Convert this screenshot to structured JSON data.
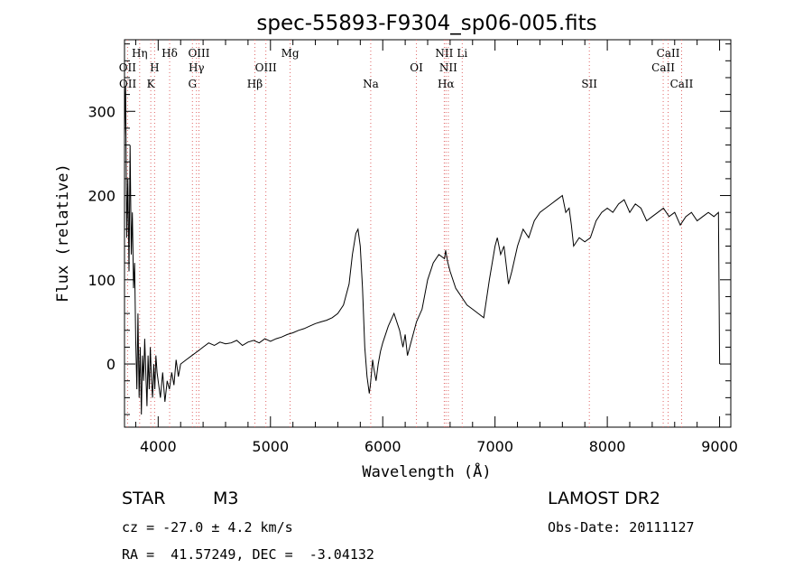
{
  "chart_data": {
    "type": "line",
    "title": "spec-55893-F9304_sp06-005.fits",
    "xlabel": "Wavelength (Å)",
    "ylabel": "Flux (relative)",
    "xlim": [
      3700,
      9100
    ],
    "ylim": [
      -75,
      385
    ],
    "xticks": [
      4000,
      5000,
      6000,
      7000,
      8000,
      9000
    ],
    "yticks": [
      0,
      100,
      200,
      300
    ],
    "grid": false,
    "series": [
      {
        "color": "#000000",
        "x": [
          3700,
          3710,
          3720,
          3730,
          3740,
          3750,
          3760,
          3770,
          3780,
          3790,
          3800,
          3810,
          3820,
          3830,
          3840,
          3850,
          3860,
          3870,
          3880,
          3890,
          3900,
          3910,
          3920,
          3930,
          3940,
          3950,
          3960,
          3970,
          3980,
          3990,
          4000,
          4020,
          4040,
          4060,
          4080,
          4100,
          4120,
          4140,
          4160,
          4180,
          4200,
          4250,
          4300,
          4350,
          4400,
          4450,
          4500,
          4550,
          4600,
          4650,
          4700,
          4750,
          4800,
          4850,
          4900,
          4950,
          5000,
          5050,
          5100,
          5150,
          5200,
          5250,
          5300,
          5350,
          5400,
          5450,
          5500,
          5550,
          5600,
          5650,
          5700,
          5730,
          5760,
          5780,
          5800,
          5820,
          5840,
          5860,
          5880,
          5890,
          5900,
          5910,
          5920,
          5940,
          5960,
          5980,
          6000,
          6050,
          6100,
          6150,
          6180,
          6200,
          6220,
          6260,
          6300,
          6350,
          6400,
          6450,
          6500,
          6550,
          6560,
          6580,
          6600,
          6650,
          6700,
          6750,
          6800,
          6850,
          6900,
          6950,
          7000,
          7020,
          7050,
          7080,
          7120,
          7150,
          7200,
          7250,
          7300,
          7350,
          7400,
          7450,
          7500,
          7550,
          7600,
          7630,
          7660,
          7680,
          7700,
          7750,
          7800,
          7850,
          7900,
          7950,
          8000,
          8050,
          8100,
          8150,
          8200,
          8250,
          8300,
          8350,
          8400,
          8450,
          8500,
          8550,
          8600,
          8650,
          8700,
          8750,
          8800,
          8850,
          8900,
          8950,
          8990,
          9000
        ],
        "y": [
          270,
          330,
          150,
          220,
          110,
          260,
          130,
          180,
          90,
          120,
          30,
          -30,
          60,
          -40,
          20,
          -60,
          10,
          -20,
          30,
          -10,
          -50,
          10,
          -30,
          20,
          -20,
          -40,
          0,
          -30,
          10,
          -10,
          -20,
          -40,
          -10,
          -45,
          -20,
          -30,
          -10,
          -25,
          5,
          -15,
          0,
          5,
          10,
          15,
          20,
          25,
          22,
          26,
          24,
          25,
          28,
          22,
          26,
          28,
          25,
          30,
          27,
          30,
          32,
          35,
          37,
          40,
          42,
          45,
          48,
          50,
          52,
          55,
          60,
          70,
          95,
          130,
          155,
          160,
          140,
          90,
          20,
          -15,
          -35,
          -25,
          -10,
          5,
          -5,
          -20,
          0,
          15,
          25,
          45,
          60,
          40,
          20,
          35,
          10,
          30,
          50,
          65,
          100,
          120,
          130,
          125,
          135,
          120,
          110,
          90,
          80,
          70,
          65,
          60,
          55,
          100,
          140,
          150,
          130,
          140,
          95,
          110,
          140,
          160,
          150,
          170,
          180,
          185,
          190,
          195,
          200,
          180,
          185,
          165,
          140,
          150,
          145,
          150,
          170,
          180,
          185,
          180,
          190,
          195,
          180,
          190,
          185,
          170,
          175,
          180,
          185,
          175,
          180,
          165,
          175,
          180,
          170,
          175,
          180,
          175,
          180,
          0
        ]
      }
    ],
    "lines": [
      {
        "label": "OII",
        "x": 3727,
        "row": 2
      },
      {
        "label": "OII",
        "x": 3729,
        "row": 3
      },
      {
        "label": "Hη",
        "x": 3835,
        "row": 1
      },
      {
        "label": "H",
        "x": 3968,
        "row": 2
      },
      {
        "label": "K",
        "x": 3934,
        "row": 3
      },
      {
        "label": "Hδ",
        "x": 4102,
        "row": 1
      },
      {
        "label": "OIII",
        "x": 4363,
        "row": 1
      },
      {
        "label": "Hγ",
        "x": 4341,
        "row": 2
      },
      {
        "label": "G",
        "x": 4305,
        "row": 3
      },
      {
        "label": "Mg",
        "x": 5175,
        "row": 1
      },
      {
        "label": "OIII",
        "x": 4959,
        "row": 2
      },
      {
        "label": "Hβ",
        "x": 4861,
        "row": 3
      },
      {
        "label": "Na",
        "x": 5893,
        "row": 3
      },
      {
        "label": "OI",
        "x": 6300,
        "row": 2
      },
      {
        "label": "NII",
        "x": 6548,
        "row": 1
      },
      {
        "label": "Li",
        "x": 6708,
        "row": 1
      },
      {
        "label": "NII",
        "x": 6584,
        "row": 2
      },
      {
        "label": "Hα",
        "x": 6563,
        "row": 3
      },
      {
        "label": "SII",
        "x": 6725,
        "row": 3,
        "label_x": 7840
      },
      {
        "label": "CaII",
        "x": 8542,
        "row": 1
      },
      {
        "label": "CaII",
        "x": 8498,
        "row": 2
      },
      {
        "label": "CaII",
        "x": 8662,
        "row": 3
      }
    ],
    "line_marker_x": [
      3727,
      3835,
      3934,
      3968,
      4102,
      4305,
      4341,
      4363,
      4861,
      4959,
      5175,
      5893,
      6300,
      6548,
      6563,
      6584,
      6708,
      7840,
      8498,
      8542,
      8662
    ]
  },
  "info": {
    "class": "STAR",
    "subclass": "M3",
    "survey": "LAMOST DR2",
    "cz": "cz = -27.0 ± 4.2 km/s",
    "obs_date": "Obs-Date: 20111127",
    "coords": "RA =  41.57249, DEC =  -3.04132"
  }
}
